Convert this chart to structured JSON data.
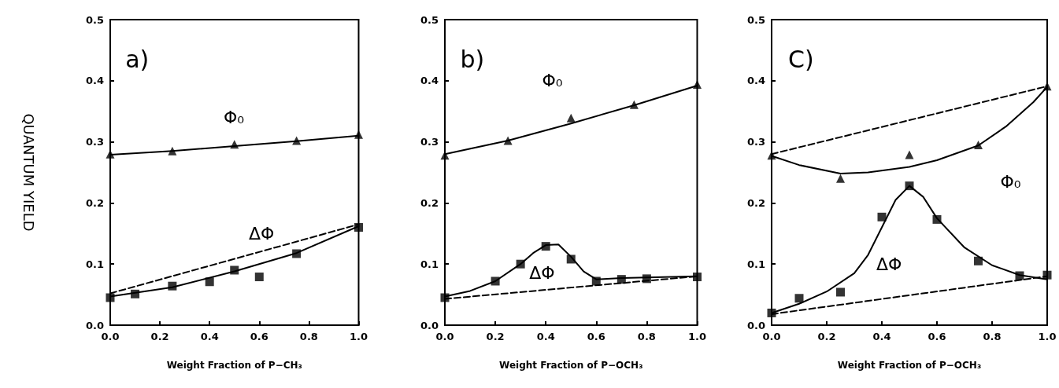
{
  "chart_data": [
    {
      "type": "scatter",
      "ylabel": "QUANTUM YIELD",
      "xlabel": "Weight Fraction of P−CH₃",
      "annotations": [
        "a)",
        "Φ₀",
        "ΔΦ"
      ],
      "xlim": [
        0,
        1
      ],
      "ylim": [
        0,
        0.5
      ],
      "xticks": [
        {
          "value": 0,
          "label": "0.0"
        },
        {
          "value": 0.2,
          "label": "0.2"
        },
        {
          "value": 0.4,
          "label": "0.4"
        },
        {
          "value": 0.6,
          "label": "0.6"
        },
        {
          "value": 0.8,
          "label": "0.8"
        },
        {
          "value": 1,
          "label": "1.0"
        }
      ],
      "yticks": [
        {
          "value": 0,
          "label": "0.0"
        },
        {
          "value": 0.1,
          "label": "0.1"
        },
        {
          "value": 0.2,
          "label": "0.2"
        },
        {
          "value": 0.3,
          "label": "0.3"
        },
        {
          "value": 0.4,
          "label": "0.4"
        },
        {
          "value": 0.5,
          "label": "0.5"
        }
      ],
      "grid": false,
      "series": [
        {
          "type": "line",
          "color": "#000000",
          "line_style": "solid",
          "x": [
            0,
            0.25,
            0.5,
            0.75,
            1
          ],
          "values": [
            0.279,
            0.285,
            0.293,
            0.301,
            0.31
          ]
        },
        {
          "type": "line",
          "color": "#000000",
          "line_style": "solid",
          "x": [
            0,
            0.25,
            0.5,
            0.75,
            1
          ],
          "values": [
            0.047,
            0.062,
            0.088,
            0.118,
            0.162
          ]
        },
        {
          "type": "line",
          "color": "#000000",
          "line_style": "dashed",
          "x": [
            0,
            1
          ],
          "values": [
            0.052,
            0.165
          ]
        },
        {
          "color": "#000000",
          "marker": "triangle",
          "x": [
            0,
            0.25,
            0.5,
            0.75,
            1
          ],
          "values": [
            0.28,
            0.285,
            0.296,
            0.302,
            0.312
          ]
        },
        {
          "color": "#000000",
          "marker": "square",
          "x": [
            0,
            0.1,
            0.25,
            0.4,
            0.5,
            0.6,
            0.75,
            1
          ],
          "values": [
            0.045,
            0.051,
            0.064,
            0.071,
            0.09,
            0.079,
            0.117,
            0.16
          ]
        }
      ]
    },
    {
      "type": "scatter",
      "xlabel": "Weight Fraction of P−OCH₃",
      "annotations": [
        "b)",
        "Φ₀",
        "ΔΦ"
      ],
      "xlim": [
        0,
        1
      ],
      "ylim": [
        0,
        0.5
      ],
      "xticks": [
        {
          "value": 0,
          "label": "0.0"
        },
        {
          "value": 0.2,
          "label": "0.2"
        },
        {
          "value": 0.4,
          "label": "0.4"
        },
        {
          "value": 0.6,
          "label": "0.6"
        },
        {
          "value": 0.8,
          "label": "0.8"
        },
        {
          "value": 1,
          "label": "1.0"
        }
      ],
      "yticks": [
        {
          "value": 0,
          "label": "0.0"
        },
        {
          "value": 0.1,
          "label": "0.1"
        },
        {
          "value": 0.2,
          "label": "0.2"
        },
        {
          "value": 0.3,
          "label": "0.3"
        },
        {
          "value": 0.4,
          "label": "0.4"
        },
        {
          "value": 0.5,
          "label": "0.5"
        }
      ],
      "grid": false,
      "series": [
        {
          "type": "line",
          "color": "#000000",
          "line_style": "solid",
          "x": [
            0,
            0.25,
            0.5,
            0.75,
            1
          ],
          "values": [
            0.28,
            0.302,
            0.33,
            0.36,
            0.392
          ]
        },
        {
          "type": "line",
          "color": "#000000",
          "line_style": "solid",
          "x": [
            0,
            0.1,
            0.2,
            0.3,
            0.35,
            0.4,
            0.45,
            0.5,
            0.55,
            0.6,
            0.7,
            0.8,
            1
          ],
          "values": [
            0.047,
            0.056,
            0.072,
            0.1,
            0.118,
            0.131,
            0.132,
            0.112,
            0.088,
            0.075,
            0.077,
            0.078,
            0.08
          ]
        },
        {
          "type": "line",
          "color": "#000000",
          "line_style": "dashed",
          "x": [
            0,
            1
          ],
          "values": [
            0.043,
            0.08
          ]
        },
        {
          "color": "#000000",
          "marker": "triangle",
          "x": [
            0,
            0.25,
            0.5,
            0.75,
            1
          ],
          "values": [
            0.278,
            0.302,
            0.339,
            0.361,
            0.394
          ]
        },
        {
          "color": "#000000",
          "marker": "square",
          "x": [
            0,
            0.2,
            0.3,
            0.4,
            0.5,
            0.6,
            0.7,
            0.8,
            1
          ],
          "values": [
            0.045,
            0.072,
            0.1,
            0.129,
            0.108,
            0.072,
            0.075,
            0.076,
            0.079
          ]
        }
      ]
    },
    {
      "type": "scatter",
      "xlabel": "Weight Fraction of P−OCH₃",
      "annotations": [
        "C)",
        "Φ₀",
        "ΔΦ"
      ],
      "xlim": [
        0,
        1
      ],
      "ylim": [
        0,
        0.5
      ],
      "xticks": [
        {
          "value": 0,
          "label": "0.0"
        },
        {
          "value": 0.2,
          "label": "0.2"
        },
        {
          "value": 0.4,
          "label": "0.4"
        },
        {
          "value": 0.6,
          "label": "0.6"
        },
        {
          "value": 0.8,
          "label": "0.8"
        },
        {
          "value": 1,
          "label": "1.0"
        }
      ],
      "yticks": [
        {
          "value": 0,
          "label": "0.0"
        },
        {
          "value": 0.1,
          "label": "0.1"
        },
        {
          "value": 0.2,
          "label": "0.2"
        },
        {
          "value": 0.3,
          "label": "0.3"
        },
        {
          "value": 0.4,
          "label": "0.4"
        },
        {
          "value": 0.5,
          "label": "0.5"
        }
      ],
      "grid": false,
      "series": [
        {
          "type": "line",
          "color": "#000000",
          "line_style": "solid",
          "x": [
            0,
            0.1,
            0.25,
            0.35,
            0.5,
            0.6,
            0.75,
            0.85,
            0.95,
            1
          ],
          "values": [
            0.277,
            0.262,
            0.248,
            0.25,
            0.259,
            0.27,
            0.294,
            0.325,
            0.365,
            0.39
          ]
        },
        {
          "type": "line",
          "color": "#000000",
          "line_style": "dashed",
          "x": [
            0,
            1
          ],
          "values": [
            0.28,
            0.391
          ]
        },
        {
          "type": "line",
          "color": "#000000",
          "line_style": "solid",
          "x": [
            0,
            0.1,
            0.2,
            0.3,
            0.35,
            0.4,
            0.45,
            0.5,
            0.55,
            0.6,
            0.7,
            0.8,
            0.9,
            1
          ],
          "values": [
            0.02,
            0.035,
            0.055,
            0.085,
            0.115,
            0.16,
            0.205,
            0.228,
            0.21,
            0.175,
            0.127,
            0.098,
            0.082,
            0.075
          ]
        },
        {
          "type": "line",
          "color": "#000000",
          "line_style": "dashed",
          "x": [
            0,
            1
          ],
          "values": [
            0.018,
            0.08
          ]
        },
        {
          "color": "#000000",
          "marker": "triangle",
          "x": [
            0,
            0.25,
            0.5,
            0.75,
            1
          ],
          "values": [
            0.278,
            0.24,
            0.279,
            0.295,
            0.391
          ]
        },
        {
          "color": "#000000",
          "marker": "square",
          "x": [
            0,
            0.1,
            0.25,
            0.4,
            0.5,
            0.6,
            0.75,
            0.9,
            1
          ],
          "values": [
            0.02,
            0.044,
            0.054,
            0.177,
            0.228,
            0.173,
            0.105,
            0.081,
            0.082
          ]
        }
      ]
    }
  ]
}
